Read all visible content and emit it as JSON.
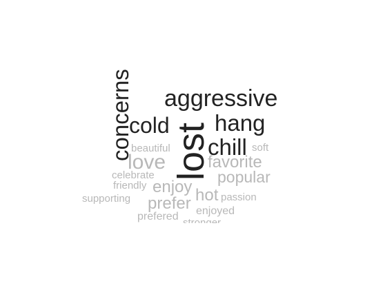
{
  "words": {
    "concerns": "concerns",
    "aggressive": "aggressive",
    "cold": "cold",
    "hang": "hang",
    "lost": "lost",
    "chill": "chill",
    "beautiful": "beautiful",
    "soft": "soft",
    "love": "love",
    "favorite": "favorite",
    "celebrate": "celebrate",
    "popular": "popular",
    "friendly": "friendly",
    "enjoy": "enjoy",
    "supporting": "supporting",
    "hot": "hot",
    "passion": "passion",
    "prefer": "prefer",
    "enjoyed": "enjoyed",
    "prefered": "prefered",
    "stronger": "stronger"
  },
  "colors": {
    "dark": "#222222",
    "light": "#b8b8b8"
  }
}
